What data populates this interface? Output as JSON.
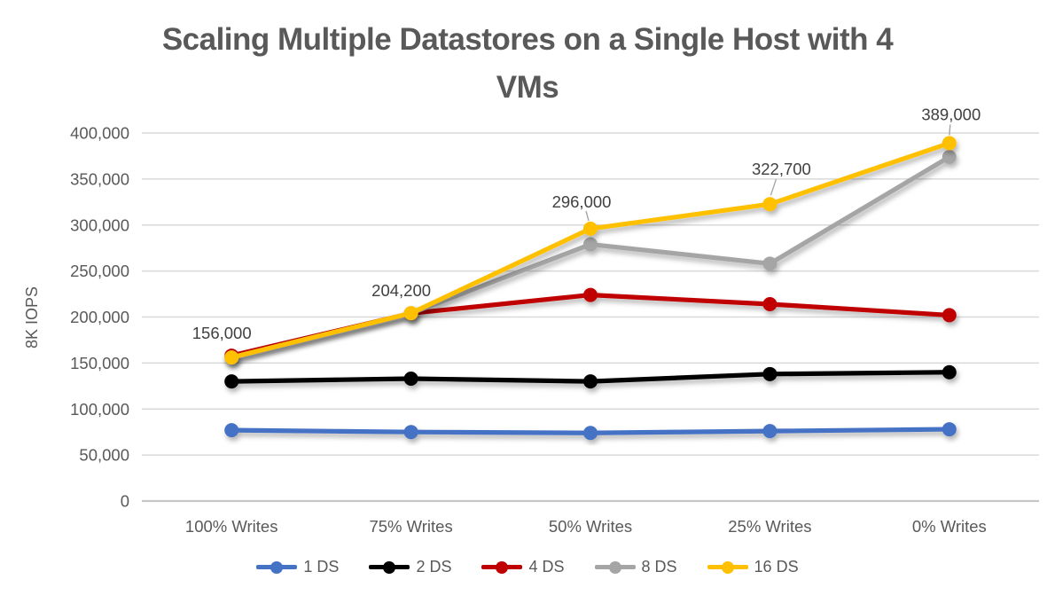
{
  "title_lines": [
    "Scaling Multiple Datastores on a Single Host with 4",
    "VMs"
  ],
  "chart_data": {
    "type": "line",
    "title": "Scaling Multiple Datastores on a Single Host with 4 VMs",
    "xlabel": "",
    "ylabel": "8K IOPS",
    "ylim": [
      0,
      400000
    ],
    "ytick_step": 50000,
    "ytick_labels": [
      "0",
      "50,000",
      "100,000",
      "150,000",
      "200,000",
      "250,000",
      "300,000",
      "350,000",
      "400,000"
    ],
    "grid": true,
    "legend_position": "bottom",
    "categories": [
      "100% Writes",
      "75% Writes",
      "50% Writes",
      "25% Writes",
      "0% Writes"
    ],
    "series": [
      {
        "name": "1 DS",
        "color": "#4472C4",
        "values": [
          77000,
          75000,
          74000,
          76000,
          78000
        ]
      },
      {
        "name": "2 DS",
        "color": "#000000",
        "values": [
          130000,
          133000,
          130000,
          138000,
          140000
        ]
      },
      {
        "name": "4 DS",
        "color": "#C00000",
        "values": [
          158000,
          204000,
          224000,
          214000,
          202000
        ]
      },
      {
        "name": "8 DS",
        "color": "#A5A5A5",
        "values": [
          156000,
          204000,
          279000,
          258000,
          374000
        ]
      },
      {
        "name": "16 DS",
        "color": "#FFC000",
        "values": [
          156000,
          204200,
          296000,
          322700,
          389000
        ]
      }
    ],
    "data_labels": {
      "series": "16 DS",
      "values": [
        "156,000",
        "204,200",
        "296,000",
        "322,700",
        "389,000"
      ]
    }
  },
  "colors": {
    "title_text": "#595959",
    "axis_text": "#595959",
    "data_label_text": "#404040",
    "gridline": "#D9D9D9",
    "baseline": "#C6C6C6",
    "leader_line": "#A6A6A6",
    "background": "#FFFFFF"
  }
}
